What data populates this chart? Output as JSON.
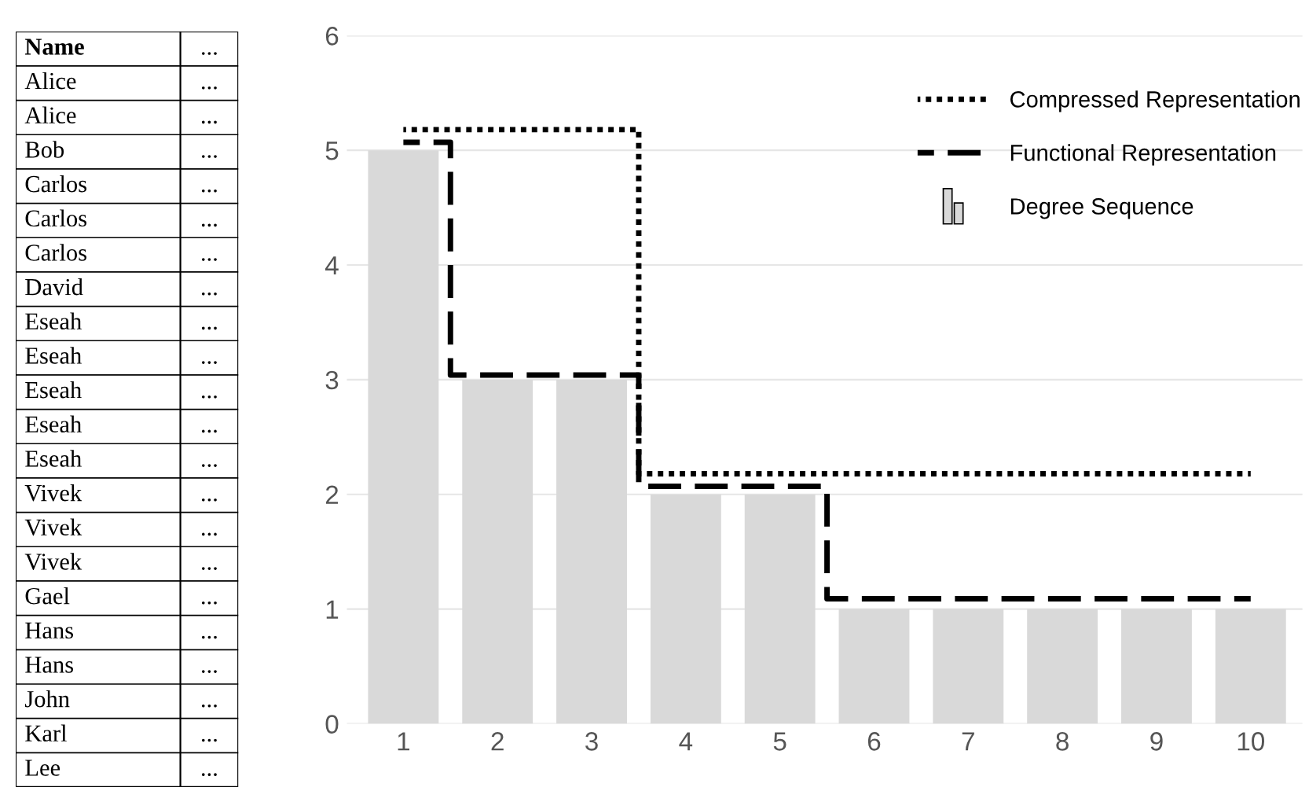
{
  "chart_data": [
    {
      "type": "other",
      "annotations": [
        "Name",
        "...",
        "Alice",
        "...",
        "Alice",
        "...",
        "Bob",
        "...",
        "Carlos",
        "...",
        "Carlos",
        "...",
        "Carlos",
        "...",
        "David",
        "...",
        "Eseah",
        "...",
        "Eseah",
        "...",
        "Eseah",
        "...",
        "Eseah",
        "...",
        "Eseah",
        "...",
        "Vivek",
        "...",
        "Vivek",
        "...",
        "Vivek",
        "...",
        "Gael",
        "...",
        "Hans",
        "...",
        "Hans",
        "...",
        "John",
        "...",
        "Karl",
        "...",
        "Lee",
        "..."
      ]
    },
    {
      "type": "bar",
      "categories": [
        "1",
        "2",
        "3",
        "4",
        "5",
        "6",
        "7",
        "8",
        "9",
        "10"
      ],
      "series": [
        {
          "name": "Degree Sequence",
          "type": "bar",
          "color": "#d9d9d9",
          "values": [
            5,
            3,
            3,
            2,
            2,
            1,
            1,
            1,
            1,
            1
          ]
        },
        {
          "name": "Compressed Representation",
          "type": "step",
          "color": "#000000",
          "line_style": "dotted",
          "values": [
            5.18,
            5.18,
            5.18,
            2.18,
            2.18,
            2.18,
            2.18,
            2.18,
            2.18,
            2.18
          ]
        },
        {
          "name": "Functional Representation",
          "type": "step",
          "color": "#000000",
          "line_style": "dashed",
          "values": [
            5.07,
            3.04,
            3.04,
            2.07,
            2.07,
            1.09,
            1.09,
            1.09,
            1.09,
            1.09
          ]
        }
      ],
      "ylim": [
        0,
        6
      ],
      "yticks": [
        0,
        1,
        2,
        3,
        4,
        5,
        6
      ],
      "grid": "y",
      "legend": "top right"
    }
  ]
}
